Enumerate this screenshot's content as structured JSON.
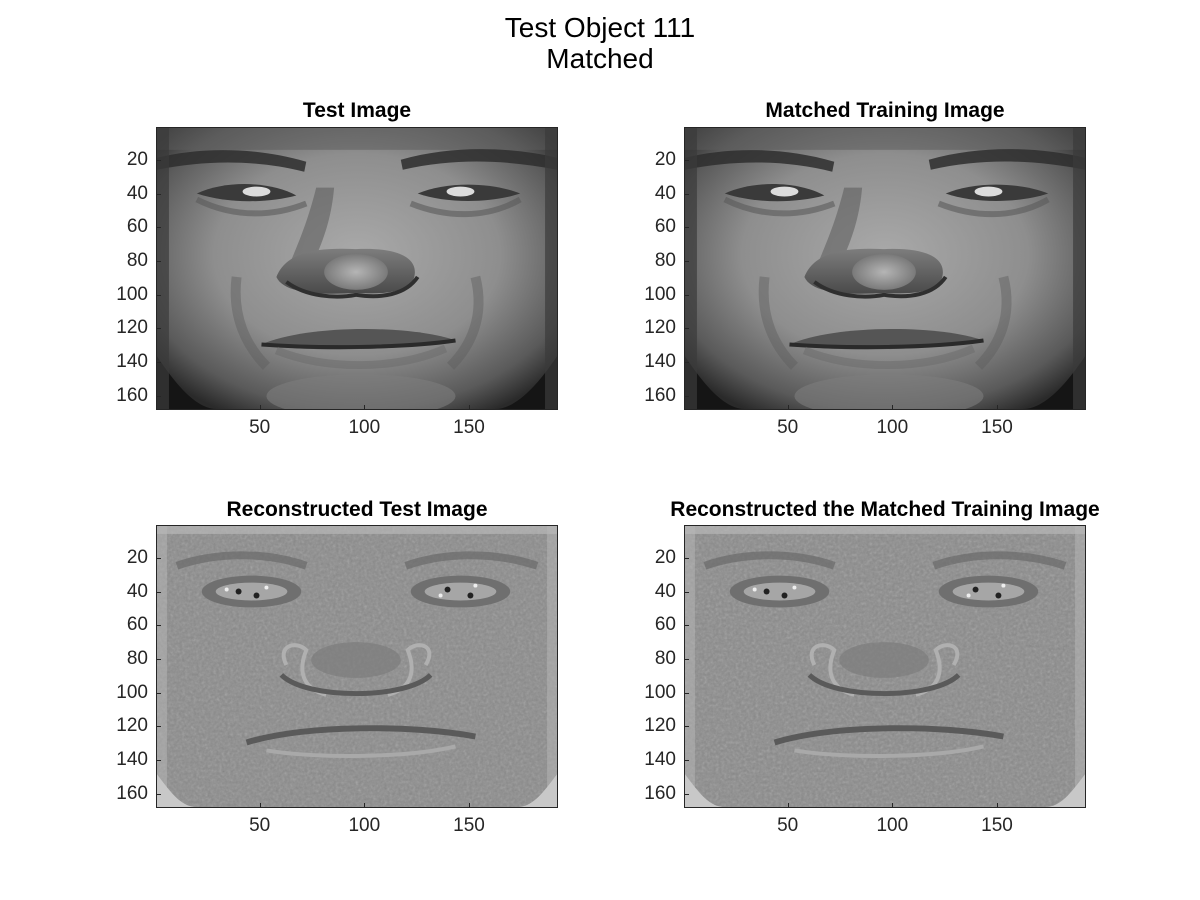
{
  "figure": {
    "title_line1": "Test Object 111",
    "title_line2": "Matched"
  },
  "panels": [
    {
      "title": "Test Image",
      "kind": "photo"
    },
    {
      "title": "Matched Training Image",
      "kind": "photo"
    },
    {
      "title": "Reconstructed Test Image",
      "kind": "reconstruction"
    },
    {
      "title": "Reconstructed the Matched Training Image",
      "kind": "reconstruction"
    }
  ],
  "axes": {
    "xlim": [
      0.5,
      192.5
    ],
    "ylim": [
      0.5,
      168.5
    ],
    "y_direction": "reverse",
    "colormap": "gray",
    "xticks": [
      50,
      100,
      150
    ],
    "yticks": [
      20,
      40,
      60,
      80,
      100,
      120,
      140,
      160
    ],
    "xtick_labels": [
      "50",
      "100",
      "150"
    ],
    "ytick_labels": [
      "20",
      "40",
      "60",
      "80",
      "100",
      "120",
      "140",
      "160"
    ]
  }
}
